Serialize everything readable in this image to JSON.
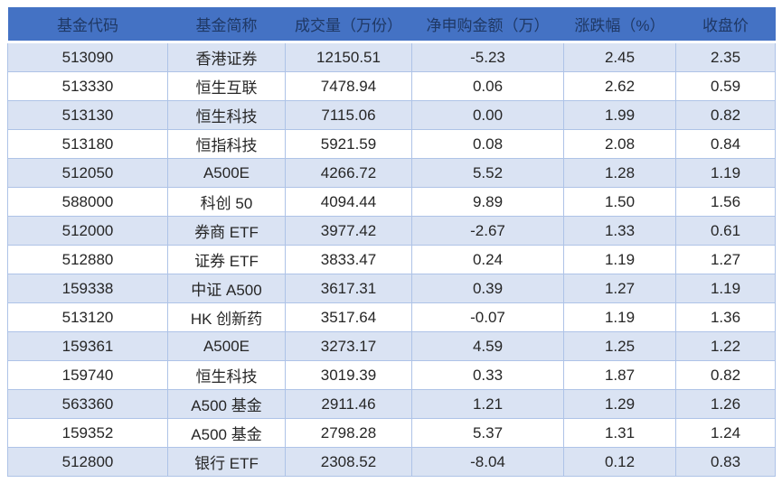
{
  "colors": {
    "header_bg": "#4472C4",
    "header_text": "#1F3864",
    "stripe_row_bg": "#DAE3F3",
    "plain_row_bg": "#FFFFFF",
    "grid_border": "#AEC3E7",
    "cell_text": "#262626"
  },
  "table": {
    "headers": [
      {
        "key": "code",
        "label": "基金代码"
      },
      {
        "key": "name",
        "label": "基金简称"
      },
      {
        "key": "vol",
        "label": "成交量（万份）"
      },
      {
        "key": "net",
        "label": "净申购金额（万）"
      },
      {
        "key": "chg",
        "label": "涨跌幅（%）"
      },
      {
        "key": "close",
        "label": "收盘价"
      }
    ],
    "rows": [
      {
        "code": "513090",
        "name": "香港证券",
        "vol": "12150.51",
        "net": "-5.23",
        "chg": "2.45",
        "close": "2.35"
      },
      {
        "code": "513330",
        "name": "恒生互联",
        "vol": "7478.94",
        "net": "0.06",
        "chg": "2.62",
        "close": "0.59"
      },
      {
        "code": "513130",
        "name": "恒生科技",
        "vol": "7115.06",
        "net": "0.00",
        "chg": "1.99",
        "close": "0.82"
      },
      {
        "code": "513180",
        "name": "恒指科技",
        "vol": "5921.59",
        "net": "0.08",
        "chg": "2.08",
        "close": "0.84"
      },
      {
        "code": "512050",
        "name": "A500E",
        "vol": "4266.72",
        "net": "5.52",
        "chg": "1.28",
        "close": "1.19"
      },
      {
        "code": "588000",
        "name": "科创 50",
        "vol": "4094.44",
        "net": "9.89",
        "chg": "1.50",
        "close": "1.56"
      },
      {
        "code": "512000",
        "name": "券商 ETF",
        "vol": "3977.42",
        "net": "-2.67",
        "chg": "1.33",
        "close": "0.61"
      },
      {
        "code": "512880",
        "name": "证券 ETF",
        "vol": "3833.47",
        "net": "0.24",
        "chg": "1.19",
        "close": "1.27"
      },
      {
        "code": "159338",
        "name": "中证 A500",
        "vol": "3617.31",
        "net": "0.39",
        "chg": "1.27",
        "close": "1.19"
      },
      {
        "code": "513120",
        "name": "HK 创新药",
        "vol": "3517.64",
        "net": "-0.07",
        "chg": "1.19",
        "close": "1.36"
      },
      {
        "code": "159361",
        "name": "A500E",
        "vol": "3273.17",
        "net": "4.59",
        "chg": "1.25",
        "close": "1.22"
      },
      {
        "code": "159740",
        "name": "恒生科技",
        "vol": "3019.39",
        "net": "0.33",
        "chg": "1.87",
        "close": "0.82"
      },
      {
        "code": "563360",
        "name": "A500 基金",
        "vol": "2911.46",
        "net": "1.21",
        "chg": "1.29",
        "close": "1.26"
      },
      {
        "code": "159352",
        "name": "A500 基金",
        "vol": "2798.28",
        "net": "5.37",
        "chg": "1.31",
        "close": "1.24"
      },
      {
        "code": "512800",
        "name": "银行 ETF",
        "vol": "2308.52",
        "net": "-8.04",
        "chg": "0.12",
        "close": "0.83"
      }
    ]
  },
  "chart_data": {
    "type": "table",
    "title": "",
    "columns": [
      "基金代码",
      "基金简称",
      "成交量（万份）",
      "净申购金额（万）",
      "涨跌幅（%）",
      "收盘价"
    ],
    "rows": [
      [
        "513090",
        "香港证券",
        12150.51,
        -5.23,
        2.45,
        2.35
      ],
      [
        "513330",
        "恒生互联",
        7478.94,
        0.06,
        2.62,
        0.59
      ],
      [
        "513130",
        "恒生科技",
        7115.06,
        0.0,
        1.99,
        0.82
      ],
      [
        "513180",
        "恒指科技",
        5921.59,
        0.08,
        2.08,
        0.84
      ],
      [
        "512050",
        "A500E",
        4266.72,
        5.52,
        1.28,
        1.19
      ],
      [
        "588000",
        "科创 50",
        4094.44,
        9.89,
        1.5,
        1.56
      ],
      [
        "512000",
        "券商 ETF",
        3977.42,
        -2.67,
        1.33,
        0.61
      ],
      [
        "512880",
        "证券 ETF",
        3833.47,
        0.24,
        1.19,
        1.27
      ],
      [
        "159338",
        "中证 A500",
        3617.31,
        0.39,
        1.27,
        1.19
      ],
      [
        "513120",
        "HK 创新药",
        3517.64,
        -0.07,
        1.19,
        1.36
      ],
      [
        "159361",
        "A500E",
        3273.17,
        4.59,
        1.25,
        1.22
      ],
      [
        "159740",
        "恒生科技",
        3019.39,
        0.33,
        1.87,
        0.82
      ],
      [
        "563360",
        "A500 基金",
        2911.46,
        1.21,
        1.29,
        1.26
      ],
      [
        "159352",
        "A500 基金",
        2798.28,
        5.37,
        1.31,
        1.24
      ],
      [
        "512800",
        "银行 ETF",
        2308.52,
        -8.04,
        0.12,
        0.83
      ]
    ]
  }
}
